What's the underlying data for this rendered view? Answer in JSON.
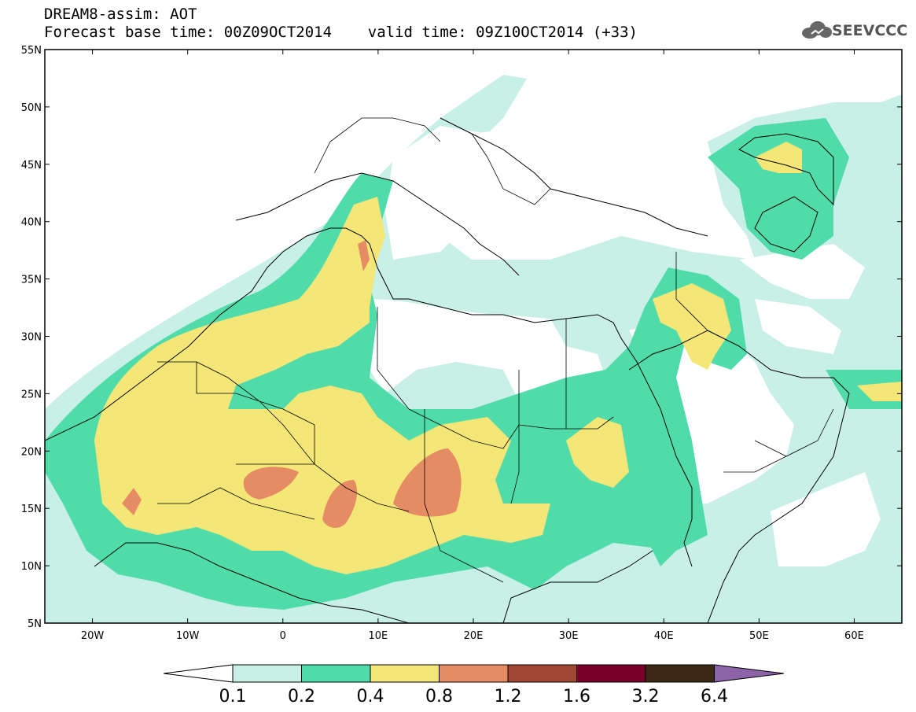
{
  "title": {
    "line1": "DREAM8-assim: AOT",
    "line2": "Forecast base time: 00Z09OCT2014    valid time: 09Z10OCT2014 (+33)"
  },
  "logo": {
    "text": "SEEVCCC",
    "icon": "cloud-icon"
  },
  "map": {
    "lon_range": [
      -25,
      65
    ],
    "lat_range": [
      5,
      55
    ],
    "lat_ticks": [
      "5N",
      "10N",
      "15N",
      "20N",
      "25N",
      "30N",
      "35N",
      "40N",
      "45N",
      "50N",
      "55N"
    ],
    "lon_ticks": [
      "20W",
      "10W",
      "0",
      "10E",
      "20E",
      "30E",
      "40E",
      "50E",
      "60E"
    ]
  },
  "colorbar": {
    "labels": [
      "0.1",
      "0.2",
      "0.4",
      "0.8",
      "1.2",
      "1.6",
      "3.2",
      "6.4"
    ],
    "colors": [
      "#ffffff",
      "#c8f0e6",
      "#50dcaa",
      "#f5e678",
      "#e68c64",
      "#a04632",
      "#780028",
      "#3c2814",
      "#8c64aa"
    ]
  }
}
